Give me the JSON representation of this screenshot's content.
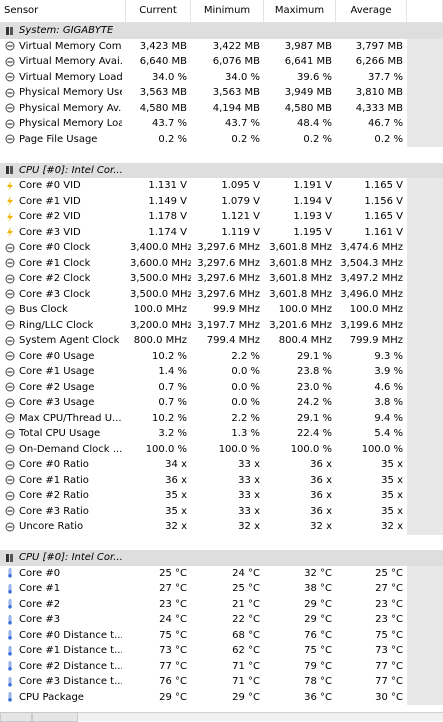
{
  "header": {
    "sensor": "Sensor",
    "current": "Current",
    "minimum": "Minimum",
    "maximum": "Maximum",
    "average": "Average"
  },
  "rows": [
    {
      "type": "group",
      "icon": "chip-icon",
      "label": "System: GIGABYTE"
    },
    {
      "type": "row",
      "icon": "gauge-icon",
      "label": "Virtual Memory Com...",
      "cur": "3,423 MB",
      "min": "3,422 MB",
      "max": "3,987 MB",
      "avg": "3,797 MB"
    },
    {
      "type": "row",
      "icon": "gauge-icon",
      "label": "Virtual Memory Avai...",
      "cur": "6,640 MB",
      "min": "6,076 MB",
      "max": "6,641 MB",
      "avg": "6,266 MB"
    },
    {
      "type": "row",
      "icon": "gauge-icon",
      "label": "Virtual Memory Load",
      "cur": "34.0 %",
      "min": "34.0 %",
      "max": "39.6 %",
      "avg": "37.7 %"
    },
    {
      "type": "row",
      "icon": "gauge-icon",
      "label": "Physical Memory Used",
      "cur": "3,563 MB",
      "min": "3,563 MB",
      "max": "3,949 MB",
      "avg": "3,810 MB"
    },
    {
      "type": "row",
      "icon": "gauge-icon",
      "label": "Physical Memory Av...",
      "cur": "4,580 MB",
      "min": "4,194 MB",
      "max": "4,580 MB",
      "avg": "4,333 MB"
    },
    {
      "type": "row",
      "icon": "gauge-icon",
      "label": "Physical Memory Load",
      "cur": "43.7 %",
      "min": "43.7 %",
      "max": "48.4 %",
      "avg": "46.7 %"
    },
    {
      "type": "row",
      "icon": "gauge-icon",
      "label": "Page File Usage",
      "cur": "0.2 %",
      "min": "0.2 %",
      "max": "0.2 %",
      "avg": "0.2 %"
    },
    {
      "type": "spacer"
    },
    {
      "type": "group",
      "icon": "chip-icon",
      "label": "CPU [#0]: Intel Cor..."
    },
    {
      "type": "row",
      "icon": "lightning-icon",
      "label": "Core #0 VID",
      "cur": "1.131 V",
      "min": "1.095 V",
      "max": "1.191 V",
      "avg": "1.165 V"
    },
    {
      "type": "row",
      "icon": "lightning-icon",
      "label": "Core #1 VID",
      "cur": "1.149 V",
      "min": "1.079 V",
      "max": "1.194 V",
      "avg": "1.156 V"
    },
    {
      "type": "row",
      "icon": "lightning-icon",
      "label": "Core #2 VID",
      "cur": "1.178 V",
      "min": "1.121 V",
      "max": "1.193 V",
      "avg": "1.165 V"
    },
    {
      "type": "row",
      "icon": "lightning-icon",
      "label": "Core #3 VID",
      "cur": "1.174 V",
      "min": "1.119 V",
      "max": "1.195 V",
      "avg": "1.161 V"
    },
    {
      "type": "row",
      "icon": "gauge-icon",
      "label": "Core #0 Clock",
      "cur": "3,400.0 MHz",
      "min": "3,297.6 MHz",
      "max": "3,601.8 MHz",
      "avg": "3,474.6 MHz"
    },
    {
      "type": "row",
      "icon": "gauge-icon",
      "label": "Core #1 Clock",
      "cur": "3,600.0 MHz",
      "min": "3,297.6 MHz",
      "max": "3,601.8 MHz",
      "avg": "3,504.3 MHz"
    },
    {
      "type": "row",
      "icon": "gauge-icon",
      "label": "Core #2 Clock",
      "cur": "3,500.0 MHz",
      "min": "3,297.6 MHz",
      "max": "3,601.8 MHz",
      "avg": "3,497.2 MHz"
    },
    {
      "type": "row",
      "icon": "gauge-icon",
      "label": "Core #3 Clock",
      "cur": "3,500.0 MHz",
      "min": "3,297.6 MHz",
      "max": "3,601.8 MHz",
      "avg": "3,496.0 MHz"
    },
    {
      "type": "row",
      "icon": "gauge-icon",
      "label": "Bus Clock",
      "cur": "100.0 MHz",
      "min": "99.9 MHz",
      "max": "100.0 MHz",
      "avg": "100.0 MHz"
    },
    {
      "type": "row",
      "icon": "gauge-icon",
      "label": "Ring/LLC Clock",
      "cur": "3,200.0 MHz",
      "min": "3,197.7 MHz",
      "max": "3,201.6 MHz",
      "avg": "3,199.6 MHz"
    },
    {
      "type": "row",
      "icon": "gauge-icon",
      "label": "System Agent Clock",
      "cur": "800.0 MHz",
      "min": "799.4 MHz",
      "max": "800.4 MHz",
      "avg": "799.9 MHz"
    },
    {
      "type": "row",
      "icon": "gauge-icon",
      "label": "Core #0 Usage",
      "cur": "10.2 %",
      "min": "2.2 %",
      "max": "29.1 %",
      "avg": "9.3 %"
    },
    {
      "type": "row",
      "icon": "gauge-icon",
      "label": "Core #1 Usage",
      "cur": "1.4 %",
      "min": "0.0 %",
      "max": "23.8 %",
      "avg": "3.9 %"
    },
    {
      "type": "row",
      "icon": "gauge-icon",
      "label": "Core #2 Usage",
      "cur": "0.7 %",
      "min": "0.0 %",
      "max": "23.0 %",
      "avg": "4.6 %"
    },
    {
      "type": "row",
      "icon": "gauge-icon",
      "label": "Core #3 Usage",
      "cur": "0.7 %",
      "min": "0.0 %",
      "max": "24.2 %",
      "avg": "3.8 %"
    },
    {
      "type": "row",
      "icon": "gauge-icon",
      "label": "Max CPU/Thread U...",
      "cur": "10.2 %",
      "min": "2.2 %",
      "max": "29.1 %",
      "avg": "9.4 %"
    },
    {
      "type": "row",
      "icon": "gauge-icon",
      "label": "Total CPU Usage",
      "cur": "3.2 %",
      "min": "1.3 %",
      "max": "22.4 %",
      "avg": "5.4 %"
    },
    {
      "type": "row",
      "icon": "gauge-icon",
      "label": "On-Demand Clock ...",
      "cur": "100.0 %",
      "min": "100.0 %",
      "max": "100.0 %",
      "avg": "100.0 %"
    },
    {
      "type": "row",
      "icon": "gauge-icon",
      "label": "Core #0 Ratio",
      "cur": "34 x",
      "min": "33 x",
      "max": "36 x",
      "avg": "35 x"
    },
    {
      "type": "row",
      "icon": "gauge-icon",
      "label": "Core #1 Ratio",
      "cur": "36 x",
      "min": "33 x",
      "max": "36 x",
      "avg": "35 x"
    },
    {
      "type": "row",
      "icon": "gauge-icon",
      "label": "Core #2 Ratio",
      "cur": "35 x",
      "min": "33 x",
      "max": "36 x",
      "avg": "35 x"
    },
    {
      "type": "row",
      "icon": "gauge-icon",
      "label": "Core #3 Ratio",
      "cur": "35 x",
      "min": "33 x",
      "max": "36 x",
      "avg": "35 x"
    },
    {
      "type": "row",
      "icon": "gauge-icon",
      "label": "Uncore Ratio",
      "cur": "32 x",
      "min": "32 x",
      "max": "32 x",
      "avg": "32 x"
    },
    {
      "type": "spacer"
    },
    {
      "type": "group",
      "icon": "chip-icon",
      "label": "CPU [#0]: Intel Cor..."
    },
    {
      "type": "row",
      "icon": "thermometer-icon",
      "label": "Core #0",
      "cur": "25 °C",
      "min": "24 °C",
      "max": "32 °C",
      "avg": "25 °C"
    },
    {
      "type": "row",
      "icon": "thermometer-icon",
      "label": "Core #1",
      "cur": "27 °C",
      "min": "25 °C",
      "max": "38 °C",
      "avg": "27 °C"
    },
    {
      "type": "row",
      "icon": "thermometer-icon",
      "label": "Core #2",
      "cur": "23 °C",
      "min": "21 °C",
      "max": "29 °C",
      "avg": "23 °C"
    },
    {
      "type": "row",
      "icon": "thermometer-icon",
      "label": "Core #3",
      "cur": "24 °C",
      "min": "22 °C",
      "max": "29 °C",
      "avg": "23 °C"
    },
    {
      "type": "row",
      "icon": "thermometer-icon",
      "label": "Core #0 Distance t...",
      "cur": "75 °C",
      "min": "68 °C",
      "max": "76 °C",
      "avg": "75 °C"
    },
    {
      "type": "row",
      "icon": "thermometer-icon",
      "label": "Core #1 Distance t...",
      "cur": "73 °C",
      "min": "62 °C",
      "max": "75 °C",
      "avg": "73 °C"
    },
    {
      "type": "row",
      "icon": "thermometer-icon",
      "label": "Core #2 Distance t...",
      "cur": "77 °C",
      "min": "71 °C",
      "max": "79 °C",
      "avg": "77 °C"
    },
    {
      "type": "row",
      "icon": "thermometer-icon",
      "label": "Core #3 Distance t...",
      "cur": "76 °C",
      "min": "71 °C",
      "max": "78 °C",
      "avg": "77 °C"
    },
    {
      "type": "row",
      "icon": "thermometer-icon",
      "label": "CPU Package",
      "cur": "29 °C",
      "min": "29 °C",
      "max": "36 °C",
      "avg": "30 °C"
    }
  ],
  "colors": {
    "group_bg": "#dedede",
    "lightning": "#f0b400",
    "thermometer": "#3b6fd8",
    "grid": "#e3e3e3"
  }
}
